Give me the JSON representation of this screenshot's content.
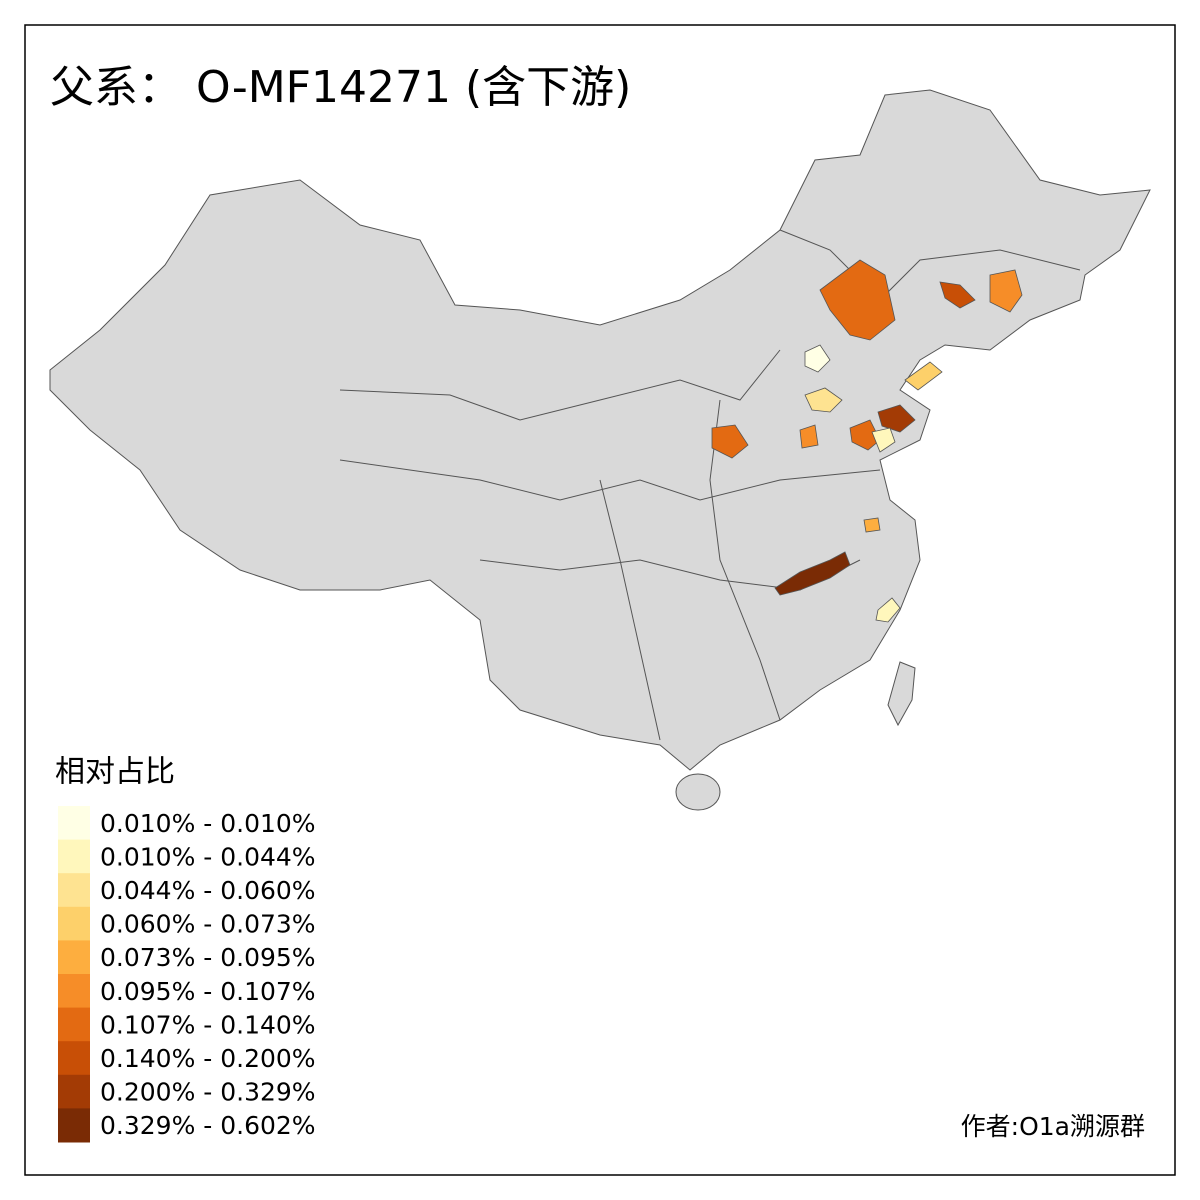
{
  "title": "父系： O-MF14271 (含下游)",
  "legend": {
    "title": "相对占比",
    "items": [
      {
        "label": "0.010% - 0.010%",
        "color": "#FFFFE5"
      },
      {
        "label": "0.010% - 0.044%",
        "color": "#FFF7BC"
      },
      {
        "label": "0.044% - 0.060%",
        "color": "#FEE391"
      },
      {
        "label": "0.060% - 0.073%",
        "color": "#FDD06A"
      },
      {
        "label": "0.073% - 0.095%",
        "color": "#FDAE3F"
      },
      {
        "label": "0.095% - 0.107%",
        "color": "#F68D28"
      },
      {
        "label": "0.107% - 0.140%",
        "color": "#E36A12"
      },
      {
        "label": "0.140% - 0.200%",
        "color": "#C84F06"
      },
      {
        "label": "0.200% - 0.329%",
        "color": "#A33B05"
      },
      {
        "label": "0.329% - 0.602%",
        "color": "#7A2B05"
      }
    ]
  },
  "author": "作者:O1a溯源群"
}
